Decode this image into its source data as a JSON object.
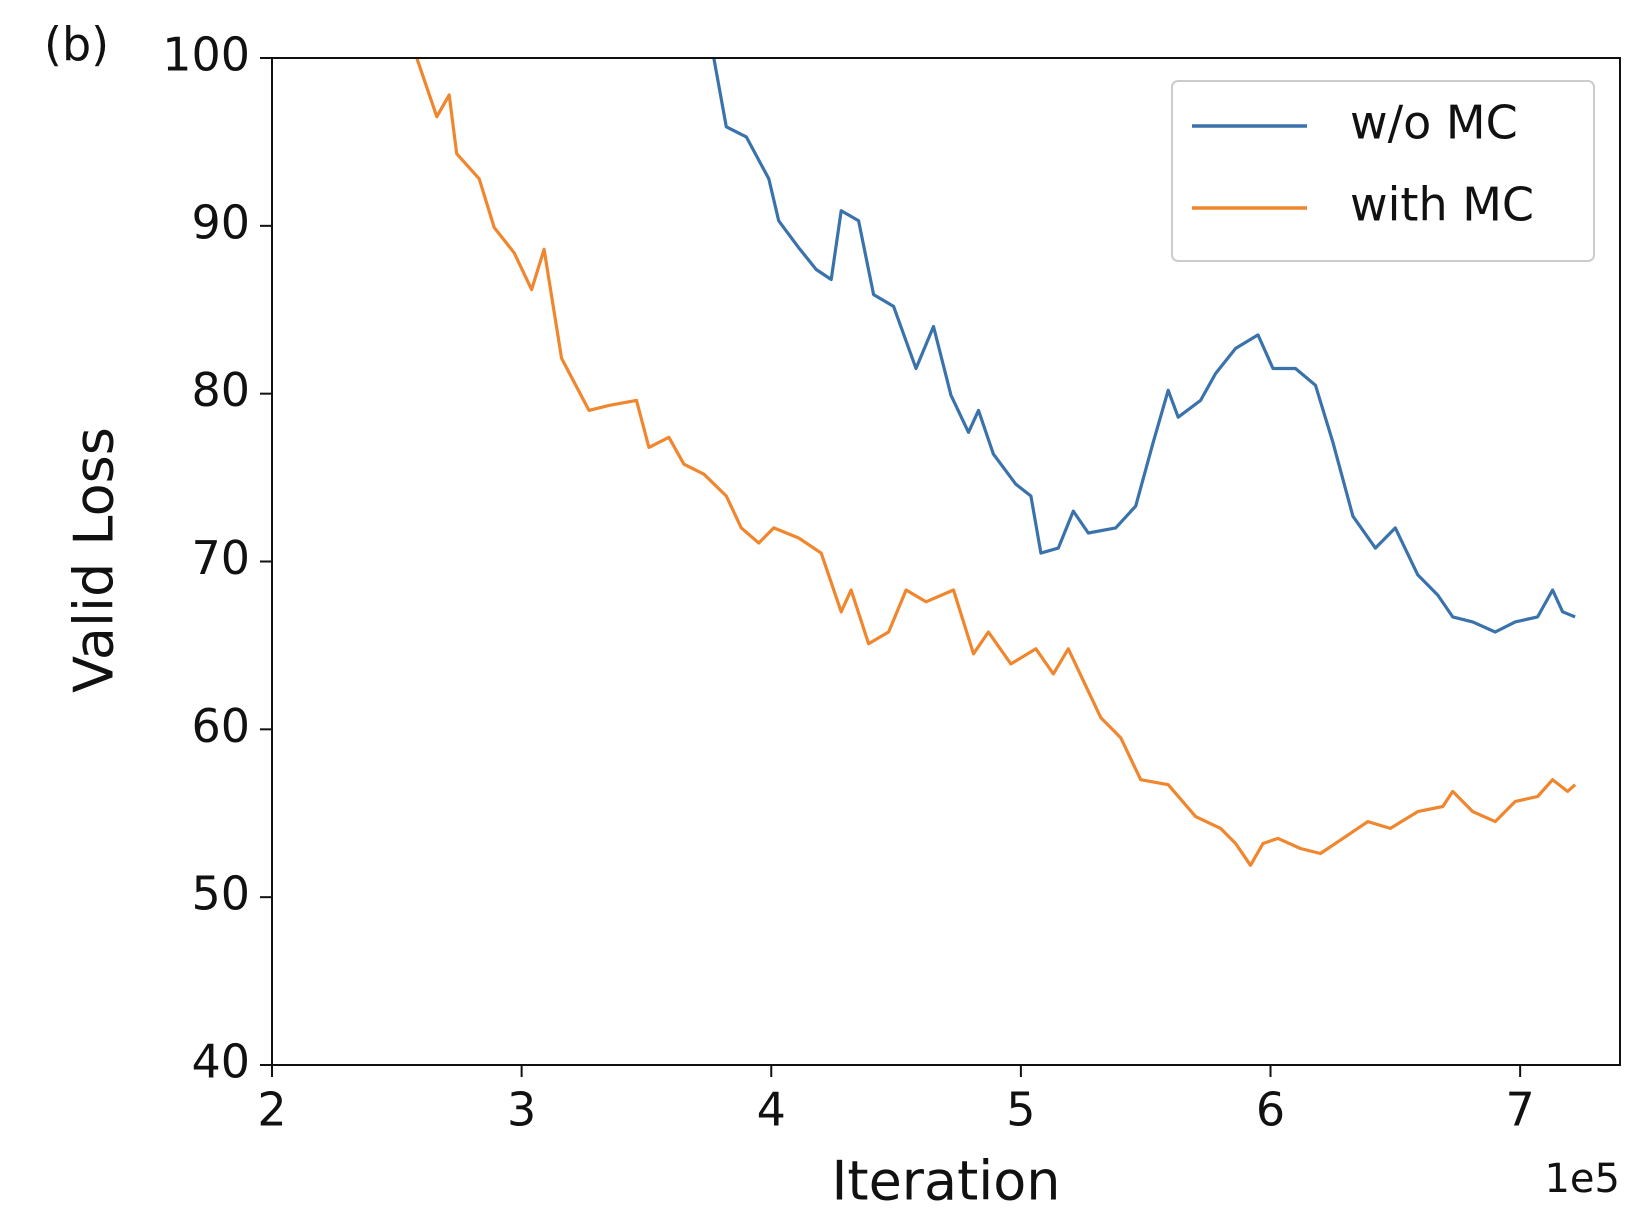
{
  "chart_data": {
    "type": "line",
    "panel_label": "(b)",
    "x_label": "Iteration",
    "y_label": "Valid Loss",
    "x_offset_label": "1e5",
    "xlim": [
      2,
      7.4
    ],
    "ylim": [
      40,
      100
    ],
    "xticks": [
      2,
      3,
      4,
      5,
      6,
      7
    ],
    "yticks": [
      40,
      50,
      60,
      70,
      80,
      90,
      100
    ],
    "legend": "upper right",
    "series": [
      {
        "name": "w/o MC",
        "color": "#3a72ab",
        "x": [
          3.77,
          3.82,
          3.9,
          3.99,
          4.03,
          4.11,
          4.18,
          4.24,
          4.28,
          4.35,
          4.41,
          4.49,
          4.58,
          4.65,
          4.72,
          4.79,
          4.83,
          4.89,
          4.98,
          5.04,
          5.08,
          5.15,
          5.21,
          5.27,
          5.38,
          5.46,
          5.53,
          5.59,
          5.63,
          5.72,
          5.78,
          5.86,
          5.95,
          6.01,
          6.1,
          6.18,
          6.25,
          6.33,
          6.42,
          6.5,
          6.59,
          6.67,
          6.73,
          6.81,
          6.9,
          6.98,
          7.07,
          7.13,
          7.17,
          7.22
        ],
        "values": [
          100,
          95.9,
          95.3,
          92.8,
          90.3,
          88.7,
          87.4,
          86.8,
          90.9,
          90.3,
          85.9,
          85.2,
          81.5,
          84.0,
          79.9,
          77.7,
          79.0,
          76.4,
          74.6,
          73.9,
          70.5,
          70.8,
          73.0,
          71.7,
          72.0,
          73.3,
          77.1,
          80.2,
          78.6,
          79.6,
          81.2,
          82.7,
          83.5,
          81.5,
          81.5,
          80.5,
          77.1,
          72.7,
          70.8,
          72.0,
          69.2,
          68.0,
          66.7,
          66.4,
          65.8,
          66.4,
          66.7,
          68.3,
          67.0,
          66.7
        ]
      },
      {
        "name": "with MC",
        "color": "#f0862e",
        "x": [
          2.58,
          2.66,
          2.71,
          2.74,
          2.83,
          2.89,
          2.97,
          3.04,
          3.09,
          3.16,
          3.27,
          3.35,
          3.46,
          3.51,
          3.59,
          3.65,
          3.73,
          3.82,
          3.88,
          3.95,
          4.01,
          4.11,
          4.2,
          4.28,
          4.32,
          4.39,
          4.47,
          4.54,
          4.62,
          4.73,
          4.81,
          4.87,
          4.96,
          5.06,
          5.13,
          5.19,
          5.25,
          5.32,
          5.4,
          5.48,
          5.59,
          5.7,
          5.8,
          5.86,
          5.92,
          5.97,
          6.03,
          6.12,
          6.2,
          6.29,
          6.39,
          6.48,
          6.59,
          6.69,
          6.73,
          6.81,
          6.9,
          6.98,
          7.07,
          7.13,
          7.19,
          7.22
        ],
        "values": [
          100,
          96.5,
          97.8,
          94.3,
          92.8,
          89.9,
          88.4,
          86.2,
          88.6,
          82.1,
          79.0,
          79.3,
          79.6,
          76.8,
          77.4,
          75.8,
          75.2,
          73.9,
          72.0,
          71.1,
          72.0,
          71.4,
          70.5,
          67.0,
          68.3,
          65.1,
          65.8,
          68.3,
          67.6,
          68.3,
          64.5,
          65.8,
          63.9,
          64.8,
          63.3,
          64.8,
          62.9,
          60.7,
          59.5,
          57.0,
          56.7,
          54.8,
          54.1,
          53.2,
          51.9,
          53.2,
          53.5,
          52.9,
          52.6,
          53.5,
          54.5,
          54.1,
          55.1,
          55.4,
          56.3,
          55.1,
          54.5,
          55.7,
          56.0,
          57.0,
          56.3,
          56.7
        ]
      }
    ]
  }
}
